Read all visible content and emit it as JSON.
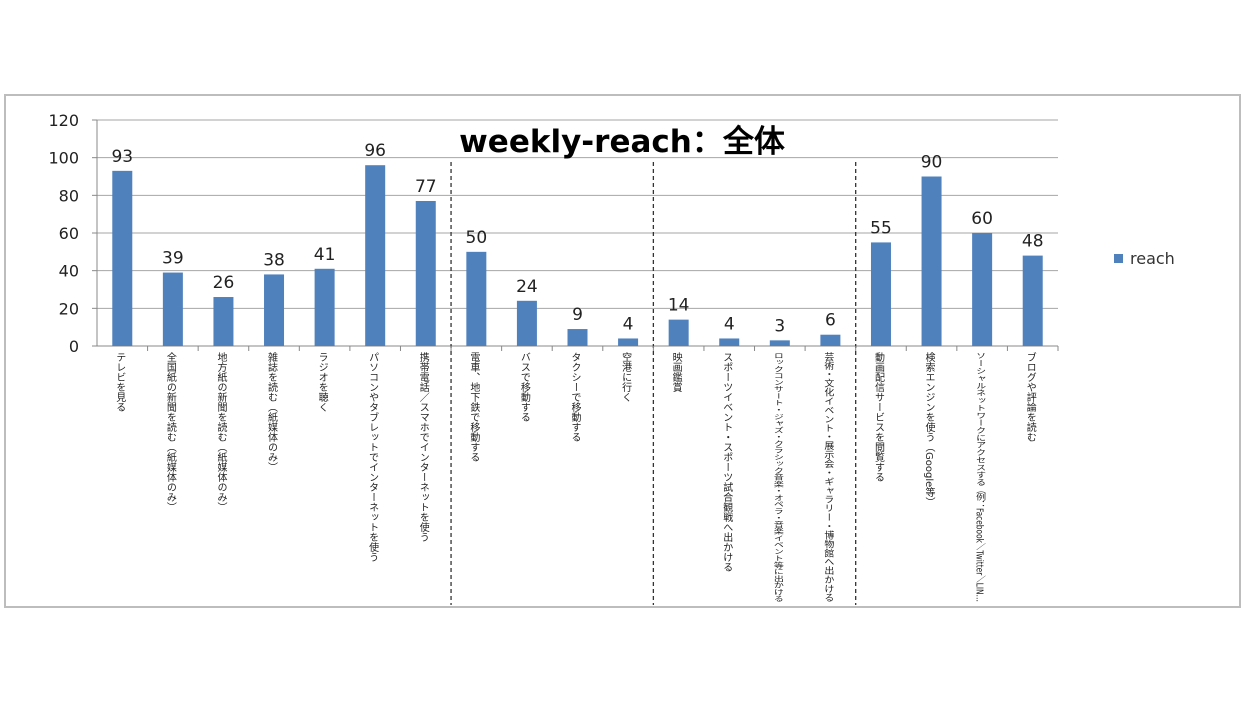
{
  "chart_data": {
    "type": "bar",
    "title": "weekly-reach：全体",
    "categories": [
      "テレビを見る",
      "全国紙の新聞を読む（紙媒体のみ）",
      "地方紙の新聞を読む（紙媒体のみ）",
      "雑誌を読む（紙媒体のみ）",
      "ラジオを聴く",
      "パソコンやタブレットでインターネットを使う",
      "携帯電話／スマホでインターネットを使う",
      "電車、地下鉄で移動する",
      "バスで移動する",
      "タクシーで移動する",
      "空港に行く",
      "映画鑑賞",
      "スポーツイベント・スポーツ試合観戦へ出かける",
      "ロックコンサート・ジャズ・クラシック音楽・オペラ・音楽イベント等に出かける",
      "芸術・文化イベント・展示会・ギャラリー・博物館へ出かける",
      "動画配信サービスを閲覧する",
      "検索エンジンを使う（Google等）",
      "ソーシャルネットワークにアクセスする（例：Facebook／Twitter／LIN…",
      "ブログや評論を読む"
    ],
    "series": [
      {
        "name": "reach",
        "values": [
          93,
          39,
          26,
          38,
          41,
          96,
          77,
          50,
          24,
          9,
          4,
          14,
          4,
          3,
          6,
          55,
          90,
          60,
          48
        ]
      }
    ],
    "ylim": [
      0,
      120
    ],
    "yticks": [
      0,
      20,
      40,
      60,
      80,
      100,
      120
    ],
    "group_separators_after": [
      7,
      11,
      15
    ],
    "grid": true,
    "legend": "right",
    "bar_color": "#4f81bd",
    "xlabel": "",
    "ylabel": ""
  }
}
